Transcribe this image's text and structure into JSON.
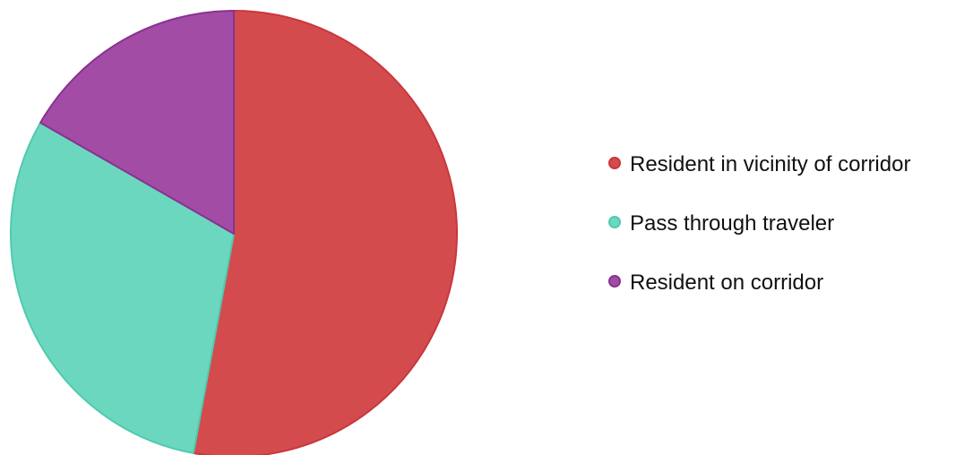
{
  "chart_data": {
    "type": "pie",
    "title": "",
    "legend_position": "right",
    "slices": [
      {
        "label": "Resident in vicinity of corridor",
        "value": 52.9,
        "color": "#d44b4e",
        "stroke": "#c9373c"
      },
      {
        "label": "Pass through traveler",
        "value": 30.4,
        "color": "#6cd7bf",
        "stroke": "#4fcaae"
      },
      {
        "label": "Resident on corridor",
        "value": 16.7,
        "color": "#a24ca6",
        "stroke": "#8a3190"
      }
    ]
  }
}
